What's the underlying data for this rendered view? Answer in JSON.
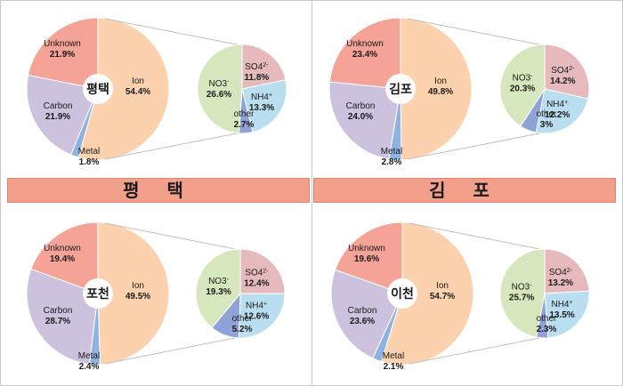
{
  "banners": [
    "평 택",
    "김 포"
  ],
  "colors": {
    "ion": "#fbd2ad",
    "unknown": "#f4a396",
    "carbon": "#cdc2de",
    "metal": "#8fb3e1",
    "no3": "#d6e6bd",
    "so4": "#e6b9bd",
    "nh4": "#b8def0",
    "other": "#8fa3d6",
    "leader": "#bfbfbf"
  },
  "chart_data": [
    {
      "type": "pie",
      "region": "평택",
      "center_label": "평택",
      "main": [
        {
          "label": "Ion",
          "value": 54.4,
          "display": "54.4%",
          "color_key": "ion"
        },
        {
          "label": "Metal",
          "value": 1.8,
          "display": "1.8%",
          "color_key": "metal"
        },
        {
          "label": "Carbon",
          "value": 21.9,
          "display": "21.9%",
          "color_key": "carbon"
        },
        {
          "label": "Unknown",
          "value": 21.9,
          "display": "21.9%",
          "color_key": "unknown"
        }
      ],
      "ion_breakdown": [
        {
          "label": "SO4",
          "sup": "2-",
          "value": 11.8,
          "display": "11.8%",
          "color_key": "so4"
        },
        {
          "label": "NH4",
          "sup": "+",
          "value": 13.3,
          "display": "13.3%",
          "color_key": "nh4"
        },
        {
          "label": "other",
          "sup": "",
          "value": 2.7,
          "display": "2.7%",
          "color_key": "other"
        },
        {
          "label": "NO3",
          "sup": "-",
          "value": 26.6,
          "display": "26.6%",
          "color_key": "no3"
        }
      ]
    },
    {
      "type": "pie",
      "region": "김포",
      "center_label": "김포",
      "main": [
        {
          "label": "Ion",
          "value": 49.8,
          "display": "49.8%",
          "color_key": "ion"
        },
        {
          "label": "Metal",
          "value": 2.8,
          "display": "2.8%",
          "color_key": "metal"
        },
        {
          "label": "Carbon",
          "value": 24.0,
          "display": "24.0%",
          "color_key": "carbon"
        },
        {
          "label": "Unknown",
          "value": 23.4,
          "display": "23.4%",
          "color_key": "unknown"
        }
      ],
      "ion_breakdown": [
        {
          "label": "SO4",
          "sup": "2-",
          "value": 14.2,
          "display": "14.2%",
          "color_key": "so4"
        },
        {
          "label": "NH4",
          "sup": "+",
          "value": 12.2,
          "display": "12.2%",
          "color_key": "nh4"
        },
        {
          "label": "other",
          "sup": "",
          "value": 3,
          "display": "3%",
          "color_key": "other"
        },
        {
          "label": "NO3",
          "sup": "-",
          "value": 20.3,
          "display": "20.3%",
          "color_key": "no3"
        }
      ]
    },
    {
      "type": "pie",
      "region": "포천",
      "center_label": "포천",
      "main": [
        {
          "label": "Ion",
          "value": 49.5,
          "display": "49.5%",
          "color_key": "ion"
        },
        {
          "label": "Metal",
          "value": 2.4,
          "display": "2.4%",
          "color_key": "metal"
        },
        {
          "label": "Carbon",
          "value": 28.7,
          "display": "28.7%",
          "color_key": "carbon"
        },
        {
          "label": "Unknown",
          "value": 19.4,
          "display": "19.4%",
          "color_key": "unknown"
        }
      ],
      "ion_breakdown": [
        {
          "label": "SO4",
          "sup": "2-",
          "value": 12.4,
          "display": "12.4%",
          "color_key": "so4"
        },
        {
          "label": "NH4",
          "sup": "+",
          "value": 12.6,
          "display": "12.6%",
          "color_key": "nh4"
        },
        {
          "label": "other",
          "sup": "",
          "value": 5.2,
          "display": "5.2%",
          "color_key": "other"
        },
        {
          "label": "NO3",
          "sup": "-",
          "value": 19.3,
          "display": "19.3%",
          "color_key": "no3"
        }
      ]
    },
    {
      "type": "pie",
      "region": "이천",
      "center_label": "이천",
      "main": [
        {
          "label": "Ion",
          "value": 54.7,
          "display": "54.7%",
          "color_key": "ion"
        },
        {
          "label": "Metal",
          "value": 2.1,
          "display": "2.1%",
          "color_key": "metal"
        },
        {
          "label": "Carbon",
          "value": 23.6,
          "display": "23.6%",
          "color_key": "carbon"
        },
        {
          "label": "Unknown",
          "value": 19.6,
          "display": "19.6%",
          "color_key": "unknown"
        }
      ],
      "ion_breakdown": [
        {
          "label": "SO4",
          "sup": "2-",
          "value": 13.2,
          "display": "13.2%",
          "color_key": "so4"
        },
        {
          "label": "NH4",
          "sup": "+",
          "value": 13.5,
          "display": "13.5%",
          "color_key": "nh4"
        },
        {
          "label": "other",
          "sup": "",
          "value": 2.3,
          "display": "2.3%",
          "color_key": "other"
        },
        {
          "label": "NO3",
          "sup": "-",
          "value": 25.7,
          "display": "25.7%",
          "color_key": "no3"
        }
      ]
    }
  ]
}
